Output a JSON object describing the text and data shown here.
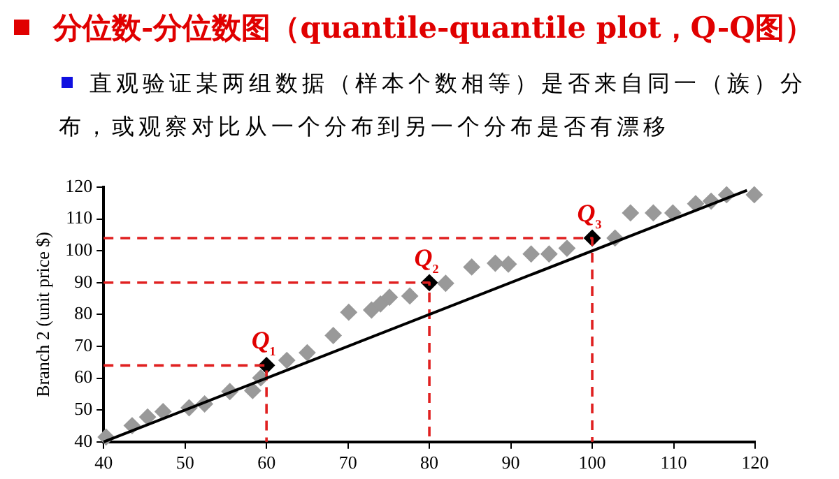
{
  "chart_data": {
    "type": "scatter",
    "title": "分位数-分位数图（quantile-quantile plot，Q-Q图）",
    "subtitle": "直观验证某两组数据（样本个数相等）是否来自同一（族）分布，或观察对比从一个分布到另一个分布是否有漂移",
    "ylabel": "Branch 2 (unit price $)",
    "series": [
      {
        "type": "line",
        "color": "#000000",
        "marker": "none",
        "line_style": "solid",
        "x": [
          40,
          119
        ],
        "values": [
          40,
          119
        ]
      },
      {
        "type": "line",
        "color": "#e02020",
        "marker": "none",
        "line_style": "dashed",
        "x": [
          40,
          60,
          60
        ],
        "values": [
          64,
          64,
          40
        ]
      },
      {
        "type": "line",
        "color": "#e02020",
        "marker": "none",
        "line_style": "dashed",
        "x": [
          40,
          80,
          80
        ],
        "values": [
          90,
          90,
          40
        ]
      },
      {
        "type": "line",
        "color": "#e02020",
        "marker": "none",
        "line_style": "dashed",
        "x": [
          40,
          100,
          100
        ],
        "values": [
          104,
          104,
          40
        ]
      },
      {
        "type": "scatter",
        "color": "#999999",
        "marker": "diamond",
        "x": [
          40.3,
          43.5,
          45.4,
          47.3,
          50.5,
          52.4,
          55.5,
          58.3,
          59.3,
          62.5,
          65,
          68.2,
          70.1,
          72.9,
          74,
          75.1,
          77.6,
          82,
          85.2,
          88.1,
          89.7,
          92.5,
          94.7,
          96.9,
          102.8,
          104.7,
          107.5,
          109.9,
          112.7,
          114.6,
          116.5,
          119.9
        ],
        "values": [
          41.5,
          45.1,
          47.8,
          49.5,
          50.7,
          51.9,
          55.8,
          56.1,
          60.1,
          65.6,
          68,
          73.4,
          80.7,
          81.4,
          83.3,
          85.4,
          85.8,
          89.8,
          94.9,
          96.1,
          95.8,
          99,
          99,
          100.8,
          104,
          111.9,
          111.9,
          111.9,
          114.8,
          115.6,
          117.6,
          117.6
        ]
      },
      {
        "type": "scatter",
        "color": "#000000",
        "marker": "diamond",
        "x": [
          60,
          80,
          100
        ],
        "values": [
          64,
          90,
          104
        ]
      }
    ],
    "annotations": [
      {
        "text": "Q₁",
        "x": 60,
        "y": 64
      },
      {
        "text": "Q₂",
        "x": 80,
        "y": 90
      },
      {
        "text": "Q₃",
        "x": 100,
        "y": 104
      }
    ],
    "xlim": [
      40,
      120
    ],
    "xticks": [
      40,
      50,
      60,
      70,
      80,
      90,
      100,
      110,
      120
    ],
    "ylim": [
      40,
      120
    ],
    "yticks": [
      40,
      50,
      60,
      70,
      80,
      90,
      100,
      110,
      120
    ],
    "grid": false,
    "legend": false
  }
}
